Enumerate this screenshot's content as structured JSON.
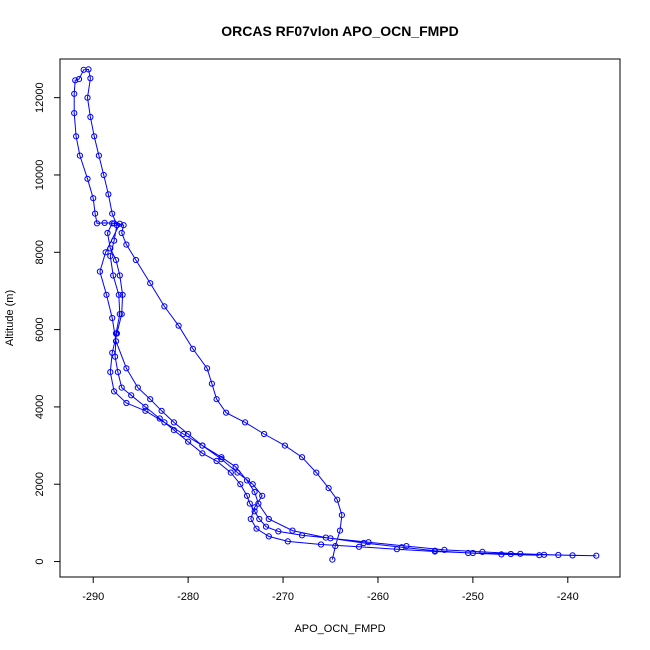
{
  "chart_data": {
    "type": "line",
    "title": "ORCAS RF07vlon APO_OCN_FMPD",
    "xlabel": "APO_OCN_FMPD",
    "ylabel": "Altitude (m)",
    "xlim": [
      -293.5,
      -234.5
    ],
    "ylim": [
      -400,
      13000
    ],
    "x_ticks": [
      -290,
      -280,
      -270,
      -260,
      -250,
      -240
    ],
    "y_ticks": [
      0,
      2000,
      4000,
      6000,
      8000,
      10000,
      12000
    ],
    "grid": false,
    "legend": "none",
    "series_color": "#0000ff",
    "marker": "open-circle",
    "line_style": "solid",
    "series": [
      {
        "values": [
          [
            -264.8,
            50
          ],
          [
            -264.5,
            400
          ],
          [
            -264.0,
            800
          ],
          [
            -263.8,
            1200
          ],
          [
            -264.3,
            1600
          ],
          [
            -265.2,
            1900
          ],
          [
            -266.5,
            2300
          ],
          [
            -268.0,
            2700
          ],
          [
            -269.8,
            3000
          ],
          [
            -272.0,
            3300
          ],
          [
            -274.0,
            3600
          ],
          [
            -276.0,
            3850
          ],
          [
            -277.0,
            4200
          ],
          [
            -277.5,
            4600
          ],
          [
            -278.0,
            5000
          ],
          [
            -279.5,
            5500
          ],
          [
            -281.0,
            6100
          ],
          [
            -282.5,
            6600
          ],
          [
            -284.0,
            7200
          ],
          [
            -285.5,
            7800
          ],
          [
            -286.5,
            8200
          ],
          [
            -287.0,
            8500
          ],
          [
            -286.8,
            8700
          ],
          [
            -287.8,
            8750
          ],
          [
            -288.8,
            8760
          ],
          [
            -289.6,
            8750
          ],
          [
            -289.8,
            9000
          ],
          [
            -290.0,
            9400
          ],
          [
            -290.6,
            9900
          ],
          [
            -291.4,
            10500
          ],
          [
            -291.8,
            11000
          ],
          [
            -292.0,
            11600
          ],
          [
            -292.0,
            12100
          ],
          [
            -291.9,
            12450
          ],
          [
            -291.5,
            12480
          ],
          [
            -291.0,
            12720
          ],
          [
            -290.5,
            12730
          ],
          [
            -290.3,
            12500
          ],
          [
            -290.6,
            12000
          ],
          [
            -290.3,
            11500
          ],
          [
            -289.9,
            11000
          ],
          [
            -289.4,
            10500
          ],
          [
            -288.9,
            10000
          ],
          [
            -288.4,
            9500
          ],
          [
            -288.0,
            9000
          ],
          [
            -287.5,
            8700
          ],
          [
            -287.8,
            8300
          ],
          [
            -288.2,
            7900
          ],
          [
            -287.9,
            7400
          ],
          [
            -287.3,
            6900
          ],
          [
            -287.2,
            6400
          ],
          [
            -287.6,
            5900
          ],
          [
            -287.7,
            5300
          ],
          [
            -287.4,
            4900
          ],
          [
            -287.0,
            4500
          ],
          [
            -286.0,
            4300
          ],
          [
            -284.5,
            4000
          ],
          [
            -283.0,
            3700
          ],
          [
            -281.5,
            3400
          ],
          [
            -280.0,
            3100
          ],
          [
            -278.5,
            2800
          ],
          [
            -277.0,
            2600
          ],
          [
            -275.5,
            2300
          ],
          [
            -274.5,
            2000
          ],
          [
            -273.8,
            1700
          ],
          [
            -273.5,
            1500
          ],
          [
            -273.0,
            1300
          ],
          [
            -272.5,
            1100
          ],
          [
            -271.8,
            900
          ],
          [
            -270.5,
            780
          ],
          [
            -268.0,
            680
          ],
          [
            -265.0,
            600
          ],
          [
            -261.0,
            500
          ],
          [
            -257.0,
            400
          ],
          [
            -253.0,
            300
          ],
          [
            -249.0,
            250
          ],
          [
            -245.0,
            200
          ],
          [
            -241.0,
            170
          ],
          [
            -237.0,
            150
          ],
          [
            -239.5,
            160
          ],
          [
            -242.5,
            175
          ],
          [
            -246.0,
            195
          ],
          [
            -250.0,
            220
          ],
          [
            -254.0,
            260
          ],
          [
            -258.0,
            320
          ],
          [
            -262.0,
            380
          ],
          [
            -266.0,
            440
          ],
          [
            -269.5,
            520
          ],
          [
            -271.5,
            650
          ],
          [
            -272.8,
            850
          ],
          [
            -273.4,
            1100
          ],
          [
            -273.0,
            1400
          ],
          [
            -272.2,
            1700
          ],
          [
            -273.2,
            2000
          ],
          [
            -274.8,
            2300
          ],
          [
            -276.5,
            2650
          ],
          [
            -278.5,
            3000
          ],
          [
            -280.5,
            3300
          ],
          [
            -282.5,
            3600
          ],
          [
            -284.5,
            3900
          ],
          [
            -286.5,
            4100
          ],
          [
            -287.8,
            4400
          ],
          [
            -288.2,
            4900
          ],
          [
            -288.0,
            5400
          ],
          [
            -287.5,
            5900
          ],
          [
            -287.0,
            6400
          ],
          [
            -286.9,
            6900
          ],
          [
            -287.2,
            7400
          ],
          [
            -287.6,
            7800
          ],
          [
            -288.2,
            8100
          ],
          [
            -288.5,
            8500
          ],
          [
            -288.0,
            8750
          ],
          [
            -287.2,
            8740
          ],
          [
            -288.7,
            8000
          ],
          [
            -289.3,
            7500
          ],
          [
            -288.6,
            6900
          ],
          [
            -288.0,
            6300
          ],
          [
            -287.6,
            5700
          ],
          [
            -286.5,
            5000
          ],
          [
            -285.3,
            4500
          ],
          [
            -284.0,
            4200
          ],
          [
            -282.8,
            3900
          ],
          [
            -281.5,
            3600
          ],
          [
            -280.0,
            3300
          ],
          [
            -278.5,
            3000
          ],
          [
            -276.5,
            2700
          ],
          [
            -275.0,
            2450
          ],
          [
            -273.8,
            2100
          ],
          [
            -273.0,
            1800
          ],
          [
            -272.6,
            1500
          ],
          [
            -271.5,
            1100
          ],
          [
            -269.0,
            800
          ],
          [
            -265.5,
            620
          ],
          [
            -261.5,
            480
          ],
          [
            -257.5,
            370
          ],
          [
            -254.0,
            280
          ],
          [
            -250.5,
            220
          ],
          [
            -247.0,
            185
          ],
          [
            -243.0,
            165
          ]
        ]
      }
    ]
  }
}
